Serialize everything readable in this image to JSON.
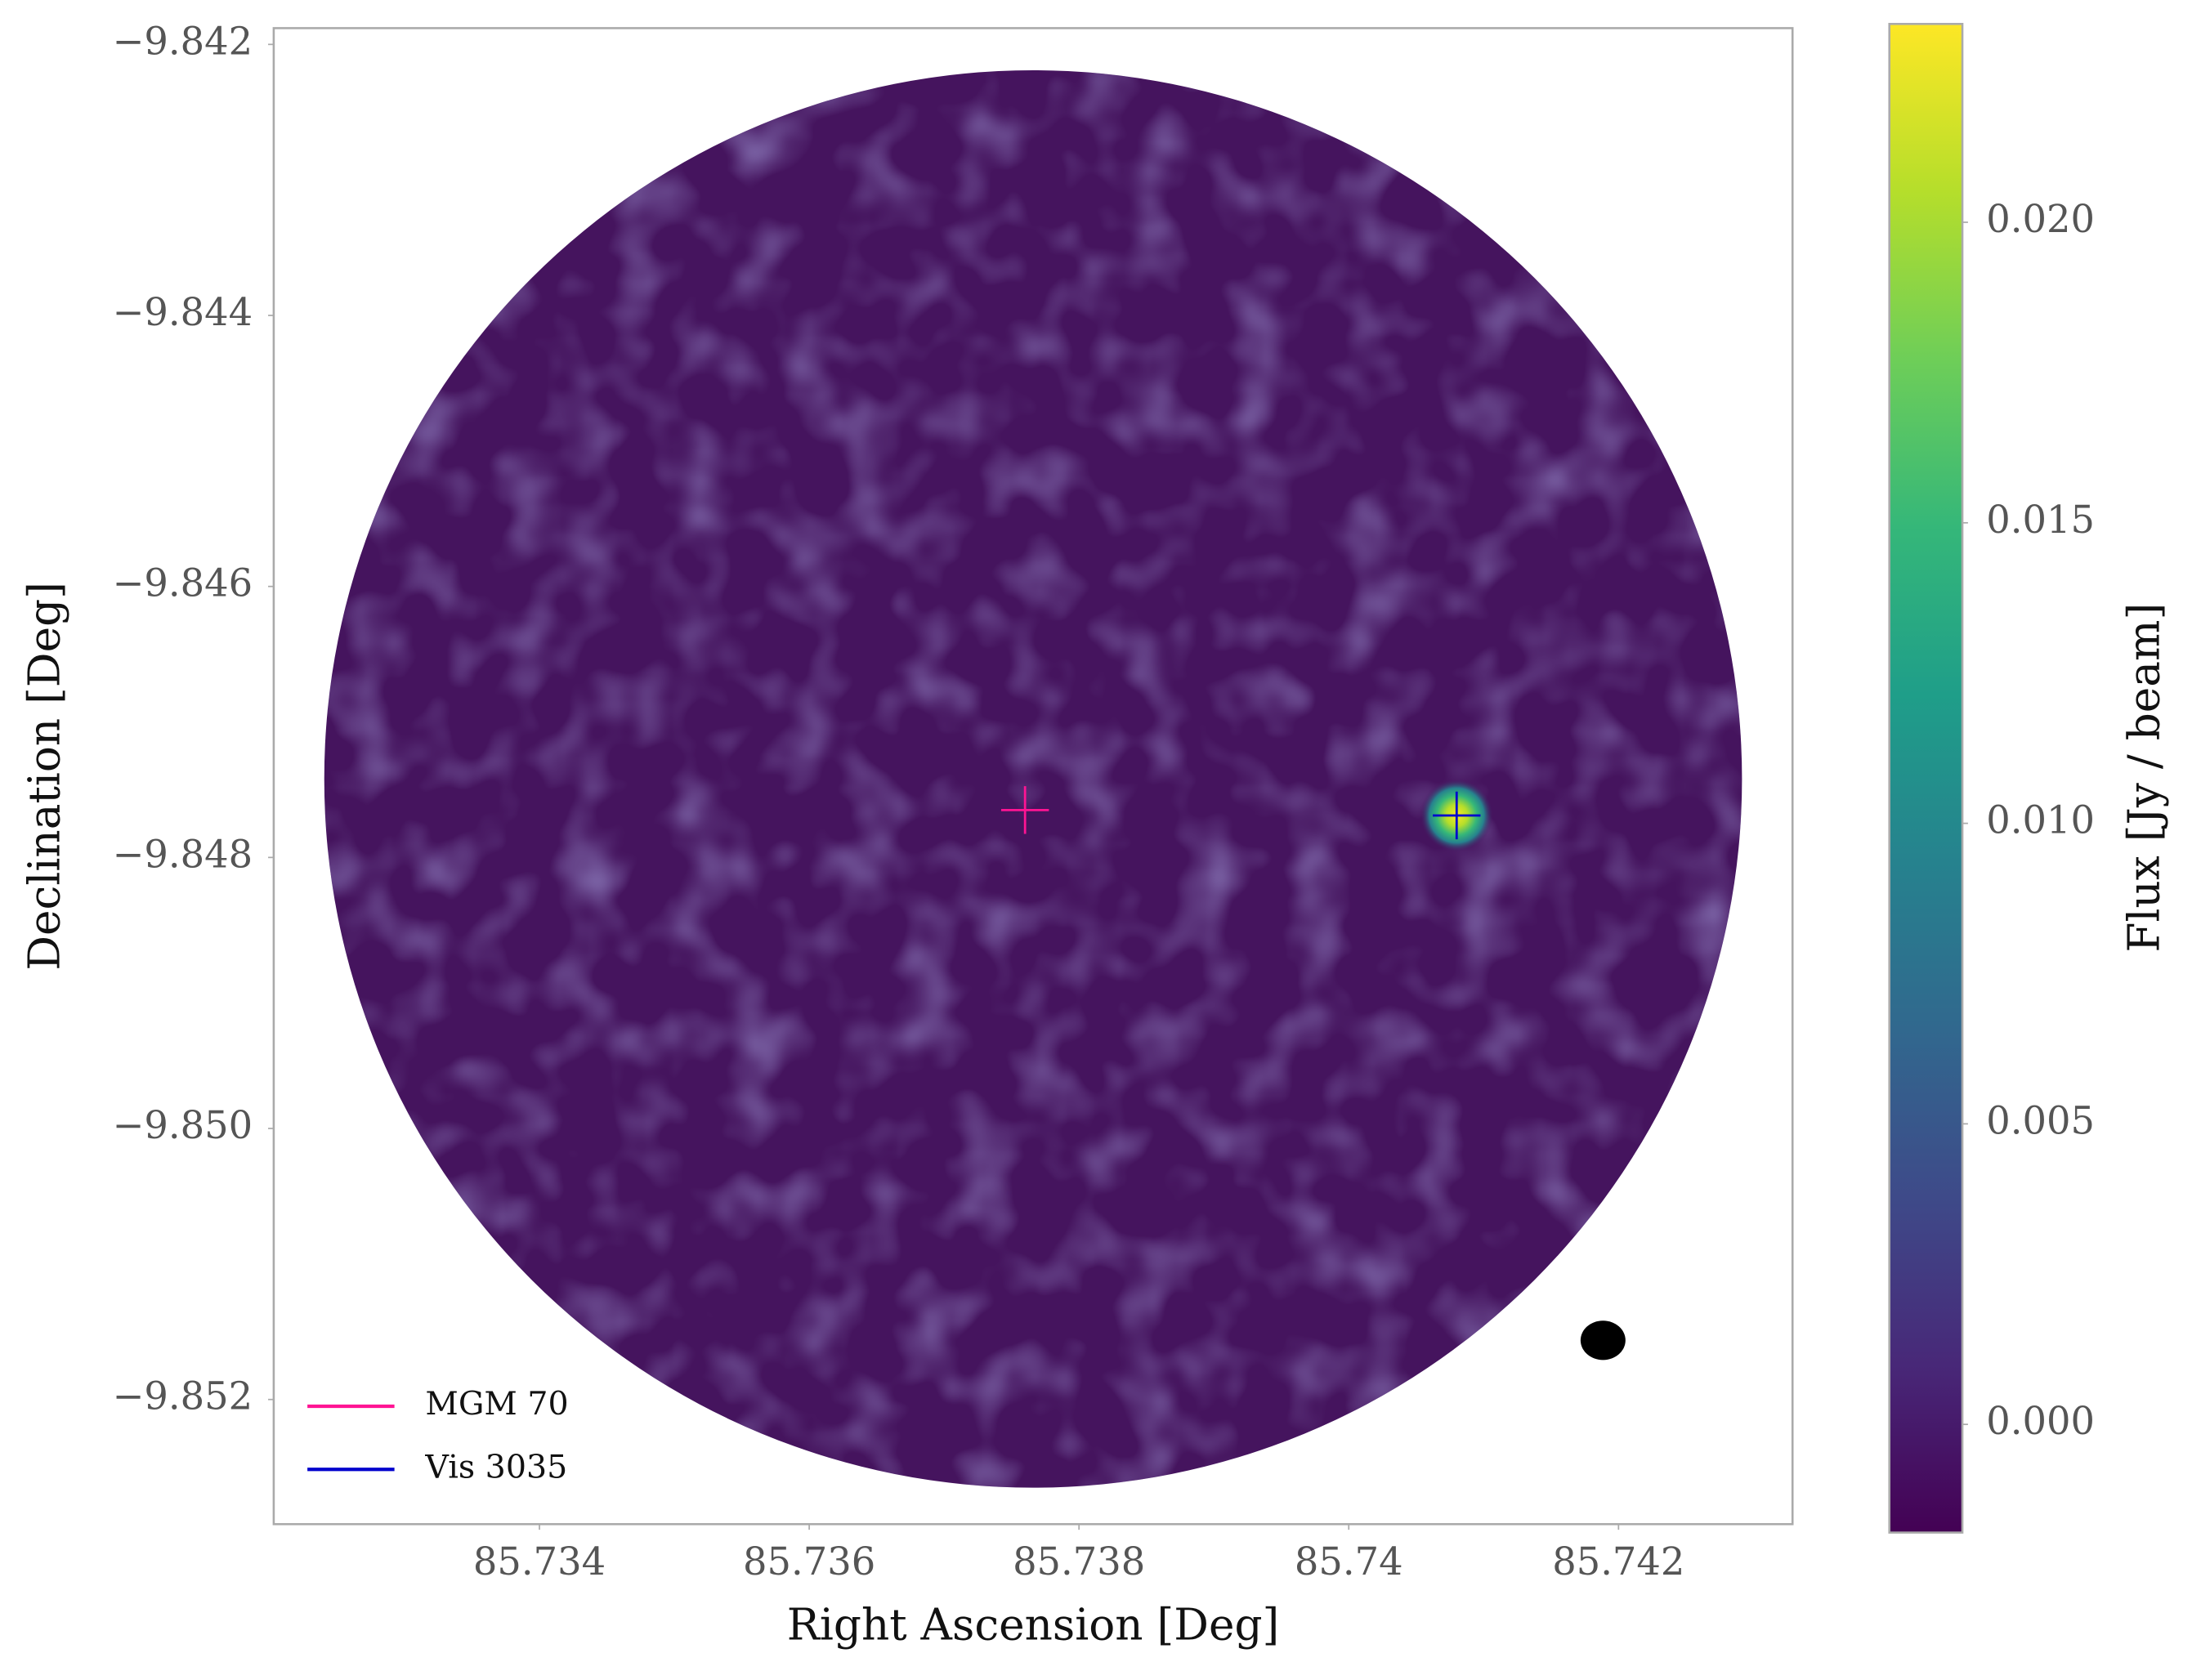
{
  "chart_data": {
    "type": "image",
    "x_label": "Right Ascension [Deg]",
    "y_label": "Declination [Deg]",
    "colorbar_label": "Flux [Jy / beam]",
    "xlim": [
      85.73203,
      85.74329
    ],
    "ylim": [
      -9.85292,
      -9.84188
    ],
    "xticks": [
      85.734,
      85.736,
      85.738,
      85.74,
      85.742
    ],
    "yticks": [
      {
        "value": -9.842,
        "label": "−9.842"
      },
      {
        "value": -9.844,
        "label": "−9.844"
      },
      {
        "value": -9.846,
        "label": "−9.846"
      },
      {
        "value": -9.848,
        "label": "−9.848"
      },
      {
        "value": -9.85,
        "label": "−9.850"
      },
      {
        "value": -9.852,
        "label": "−9.852"
      }
    ],
    "clim": [
      -0.0018,
      0.0233
    ],
    "cticks": [
      {
        "value": 0.0,
        "label": "0.000"
      },
      {
        "value": 0.005,
        "label": "0.005"
      },
      {
        "value": 0.01,
        "label": "0.010"
      },
      {
        "value": 0.015,
        "label": "0.015"
      },
      {
        "value": 0.02,
        "label": "0.020"
      }
    ],
    "colormap": [
      "#440154",
      "#482878",
      "#3e4a89",
      "#31688e",
      "#26828e",
      "#1f9e89",
      "#35b779",
      "#6ece58",
      "#b5de2b",
      "#fde725"
    ],
    "legend": "lower left",
    "series": [
      {
        "name": "MGM 70",
        "color": "#ff1493",
        "x": [
          85.7376
        ],
        "values": [
          -9.84765
        ]
      },
      {
        "name": "Vis 3035",
        "color": "#0000cd",
        "x": [
          85.7408
        ],
        "values": [
          -9.84769
        ]
      }
    ]
  }
}
